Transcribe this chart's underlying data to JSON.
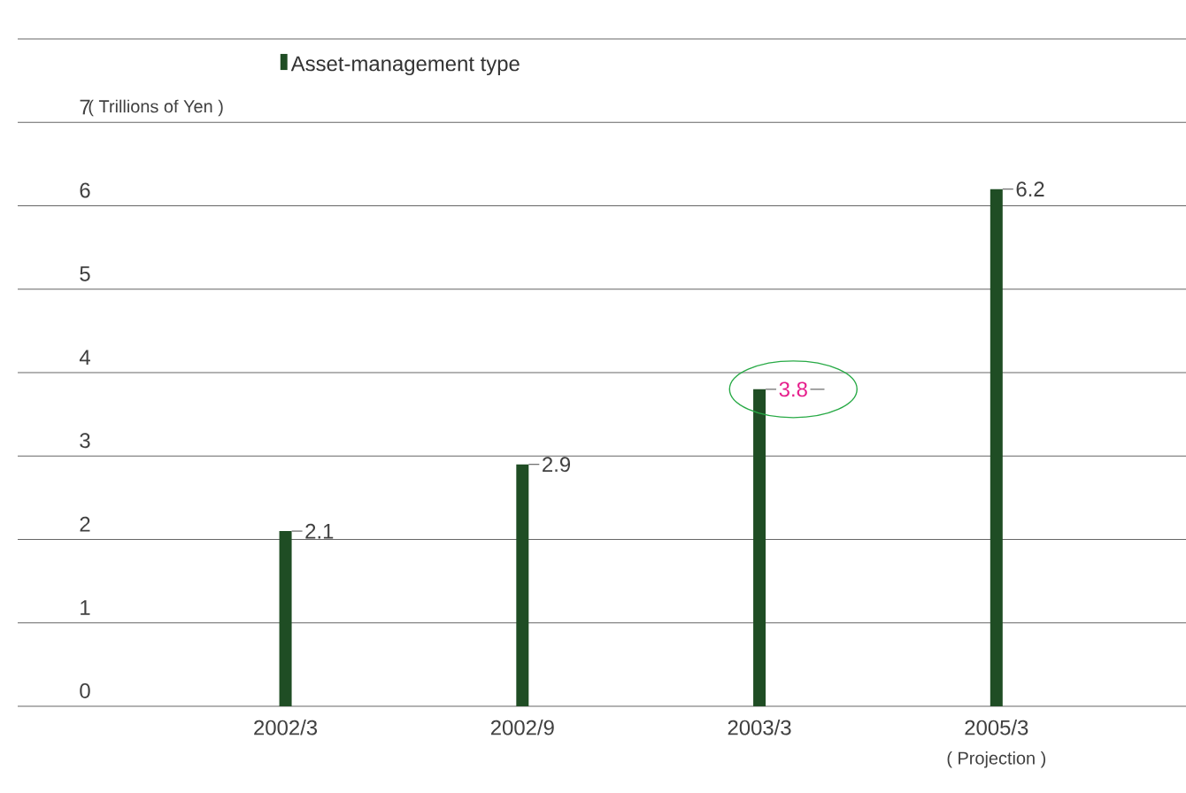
{
  "chart_data": {
    "type": "bar",
    "categories": [
      "2002/3",
      "2002/9",
      "2003/3",
      "2005/3"
    ],
    "series": [
      {
        "name": "Asset-management type",
        "color": "#1f4d24",
        "values": [
          2.1,
          2.9,
          3.8,
          6.2
        ]
      }
    ],
    "value_labels": [
      "2.1",
      "2.9",
      null,
      "6.2"
    ],
    "ylabel": "( Trillions of Yen )",
    "annotations": [
      {
        "text": "3.8",
        "x": "2003/3",
        "y": 3.8
      },
      "( Projection )"
    ],
    "ylim": [
      0,
      8
    ],
    "yticks": [
      0,
      1,
      2,
      3,
      4,
      5,
      6,
      7,
      {
        "value": 8,
        "label": null
      }
    ],
    "grid": "y",
    "legend": "top"
  }
}
